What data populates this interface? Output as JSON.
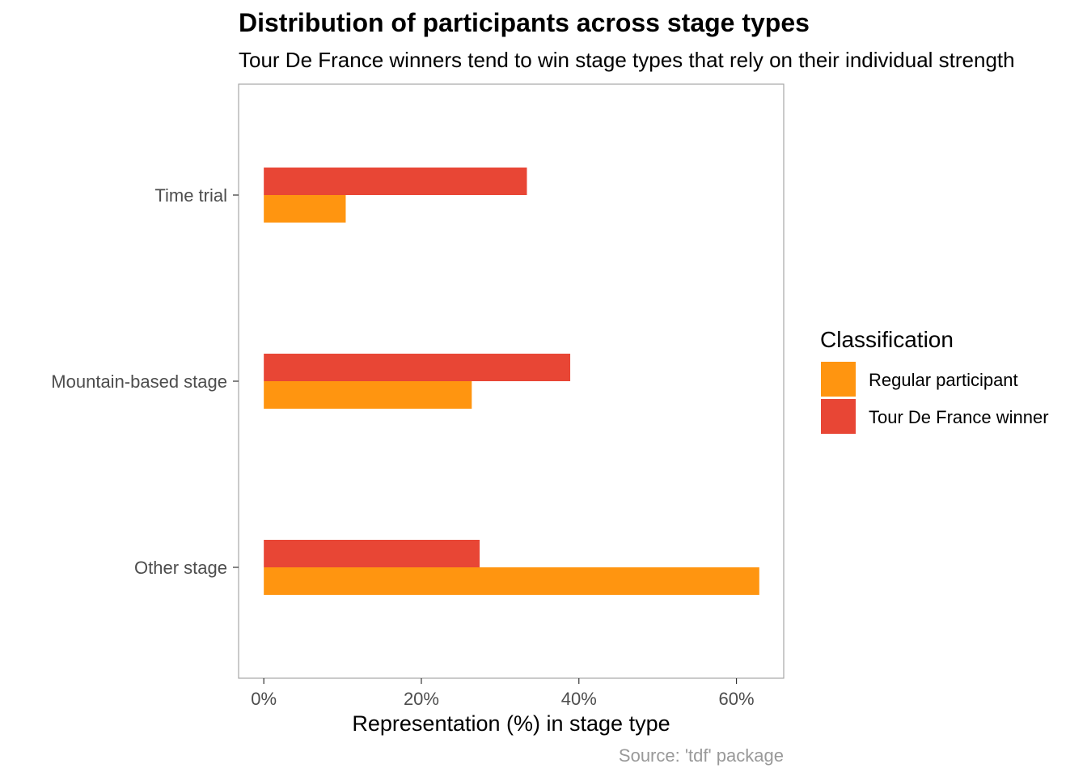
{
  "chart_data": {
    "type": "bar",
    "orientation": "horizontal",
    "title": "Distribution of participants across stage types",
    "subtitle": "Tour De France winners tend to win stage types that rely on their individual strength",
    "xlabel": "Representation (%) in stage type",
    "ylabel": "",
    "caption": "Source: 'tdf' package",
    "categories": [
      "Time trial",
      "Mountain-based stage",
      "Other stage"
    ],
    "series": [
      {
        "name": "Regular participant",
        "color": "#FF9510",
        "values": [
          10.4,
          26.4,
          62.9
        ]
      },
      {
        "name": "Tour De France winner",
        "color": "#E84635",
        "values": [
          33.4,
          38.9,
          27.4
        ]
      }
    ],
    "xlim": [
      -3.2,
      66.0
    ],
    "xticks": [
      0,
      20,
      40,
      60
    ],
    "xtick_labels": [
      "0%",
      "20%",
      "40%",
      "60%"
    ],
    "grid": false,
    "legend": {
      "title": "Classification",
      "position": "right"
    }
  }
}
